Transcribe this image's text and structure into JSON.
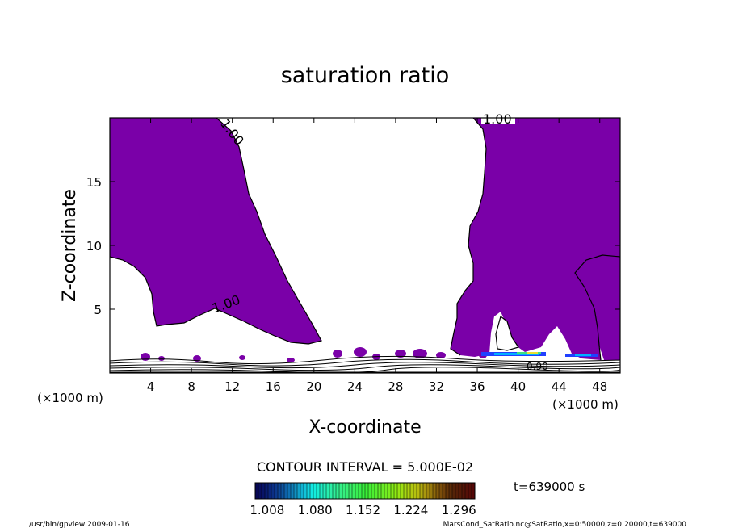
{
  "chart_data": {
    "type": "contour",
    "title": "saturation ratio",
    "xlabel": "X-coordinate",
    "ylabel": "Z-coordinate",
    "x_unit": "(×1000 m)",
    "y_unit": "(×1000 m)",
    "xlim": [
      0,
      50
    ],
    "ylim": [
      0,
      20
    ],
    "x_ticks": [
      4,
      8,
      12,
      16,
      20,
      24,
      28,
      32,
      36,
      40,
      44,
      48
    ],
    "y_ticks": [
      5,
      10,
      15
    ],
    "contour_interval_text": "CONTOUR INTERVAL = 5.000E-02",
    "contour_labels": [
      "1.00",
      "1.00",
      "1.00",
      "0.90"
    ],
    "colorbar": {
      "min": 0.99,
      "max": 1.32,
      "tick_values": [
        1.008,
        1.08,
        1.152,
        1.224,
        1.296
      ],
      "tick_labels": [
        "1.008",
        "1.080",
        "1.152",
        "1.224",
        "1.296"
      ]
    },
    "supersaturated_fill_color": "#7a00a8",
    "grid": false
  },
  "time_label": "t=639000 s",
  "footer": {
    "left": "/usr/bin/gpview  2009-01-16",
    "right": "MarsCond_SatRatio.nc@SatRatio,x=0:50000,z=0:20000,t=639000"
  }
}
